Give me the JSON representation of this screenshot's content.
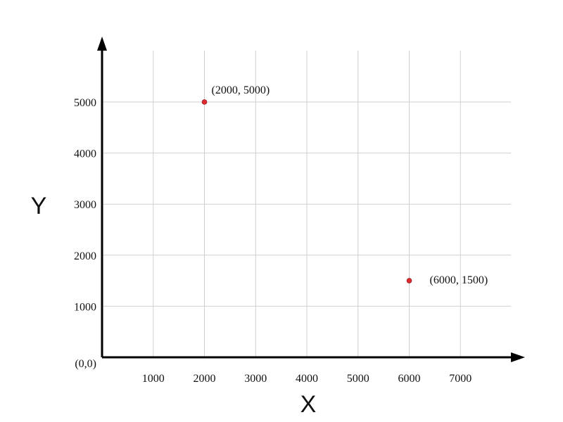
{
  "chart_data": {
    "type": "scatter",
    "title": "",
    "xlabel": "X",
    "ylabel": "Y",
    "origin_label": "(0,0)",
    "xlim": [
      0,
      8000
    ],
    "ylim": [
      0,
      5000
    ],
    "x_ticks": [
      1000,
      2000,
      3000,
      4000,
      5000,
      6000,
      7000
    ],
    "y_ticks": [
      1000,
      2000,
      3000,
      4000,
      5000
    ],
    "grid": true,
    "point_color": "#e0282e",
    "points": [
      {
        "x": 2000,
        "y": 5000,
        "label": "(2000, 5000)"
      },
      {
        "x": 6000,
        "y": 1500,
        "label": "(6000, 1500)"
      }
    ]
  }
}
